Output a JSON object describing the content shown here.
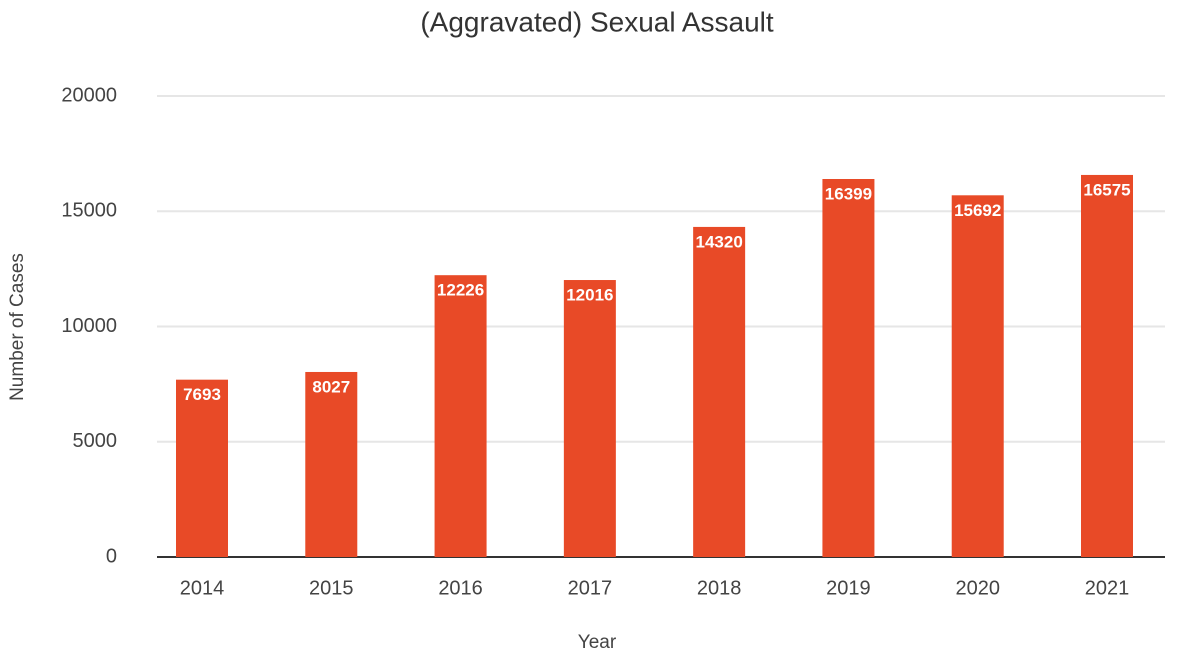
{
  "chart_data": {
    "type": "bar",
    "title": "(Aggravated) Sexual Assault",
    "x_label": "Year",
    "y_label": "Number of Cases",
    "categories": [
      "2014",
      "2015",
      "2016",
      "2017",
      "2018",
      "2019",
      "2020",
      "2021"
    ],
    "values": [
      7693,
      8027,
      12226,
      12016,
      14320,
      16399,
      15692,
      16575
    ],
    "color": "#e84a27",
    "ylim": [
      0,
      20000
    ],
    "yticks": [
      0,
      5000,
      10000,
      15000,
      20000
    ],
    "grid": true
  }
}
